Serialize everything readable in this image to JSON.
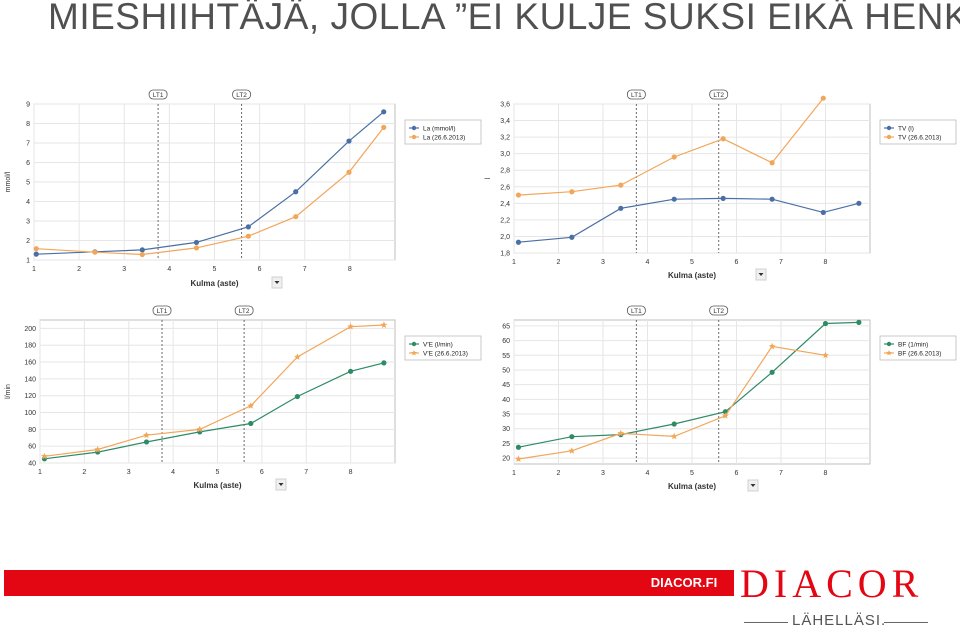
{
  "slide": {
    "title": "MIESHIIHTÄJÄ, JOLLA ”EI KULJE SUKSI EIKÄ HENKI”"
  },
  "footer": {
    "url": "DIACOR.FI",
    "logo": "DIACOR",
    "tagline": "LÄHELLÄSI.",
    "brand_color": "#e30613"
  },
  "colors": {
    "series_a_blue": "#4a6fa5",
    "series_a_green": "#2e8b66",
    "series_b_orange": "#f2a65a",
    "threshold_line": "#6b6b6b",
    "grid": "#e6e6e6"
  },
  "chart_data": [
    {
      "type": "line",
      "ylabel": "mmol/l",
      "xlabel": "Kulma (aste)",
      "xlim": [
        1,
        9
      ],
      "ylim": [
        1,
        9
      ],
      "x_ticks": [
        1,
        2,
        3,
        4,
        5,
        6,
        7,
        8
      ],
      "y_ticks": [
        1,
        2,
        3,
        4,
        5,
        6,
        7,
        8,
        9
      ],
      "y_decimals": 0,
      "thresholds": [
        {
          "label": "LT1",
          "x": 3.75
        },
        {
          "label": "LT2",
          "x": 5.6
        }
      ],
      "grid": true,
      "legend_position": "top-right",
      "series": [
        {
          "name": "La (mmol/l)",
          "color": "#4a6fa5",
          "marker": "dot",
          "x": [
            1.05,
            2.35,
            3.4,
            4.6,
            5.75,
            6.8,
            7.98,
            8.75
          ],
          "y": [
            1.3,
            1.42,
            1.52,
            1.9,
            2.7,
            4.5,
            7.1,
            8.6
          ]
        },
        {
          "name": "La (26.6.2013)",
          "color": "#f2a65a",
          "marker": "dot",
          "x": [
            1.05,
            2.35,
            3.4,
            4.6,
            5.75,
            6.8,
            7.98,
            8.75
          ],
          "y": [
            1.58,
            1.4,
            1.28,
            1.62,
            2.22,
            3.22,
            5.5,
            7.8
          ]
        }
      ]
    },
    {
      "type": "line",
      "ylabel": "l",
      "xlabel": "Kulma (aste)",
      "xlim": [
        1,
        9
      ],
      "ylim": [
        1.8,
        3.6
      ],
      "x_ticks": [
        1,
        2,
        3,
        4,
        5,
        6,
        7,
        8
      ],
      "y_ticks": [
        1.8,
        2,
        2.2,
        2.4,
        2.6,
        2.8,
        3,
        3.2,
        3.4,
        3.6
      ],
      "y_decimals": 1,
      "thresholds": [
        {
          "label": "LT1",
          "x": 3.75
        },
        {
          "label": "LT2",
          "x": 5.6
        }
      ],
      "grid": true,
      "legend_position": "top-right",
      "series": [
        {
          "name": "TV (l)",
          "color": "#4a6fa5",
          "marker": "dot",
          "x": [
            1.1,
            2.3,
            3.4,
            4.6,
            5.7,
            6.8,
            7.95,
            8.75
          ],
          "y": [
            1.93,
            1.99,
            2.34,
            2.45,
            2.46,
            2.45,
            2.29,
            2.4
          ]
        },
        {
          "name": "TV (26.6.2013)",
          "color": "#f2a65a",
          "marker": "dot",
          "x": [
            1.1,
            2.3,
            3.4,
            4.6,
            5.7,
            6.8,
            7.95
          ],
          "y": [
            2.5,
            2.54,
            2.62,
            2.96,
            3.18,
            2.89,
            3.67
          ]
        }
      ]
    },
    {
      "type": "line",
      "ylabel": "l/min",
      "xlabel": "Kulma (aste)",
      "xlim": [
        1,
        9
      ],
      "ylim": [
        40,
        210
      ],
      "x_ticks": [
        1,
        2,
        3,
        4,
        5,
        6,
        7,
        8
      ],
      "y_ticks": [
        40,
        60,
        80,
        100,
        120,
        140,
        160,
        180,
        200
      ],
      "y_decimals": 0,
      "thresholds": [
        {
          "label": "LT1",
          "x": 3.75
        },
        {
          "label": "LT2",
          "x": 5.6
        }
      ],
      "grid": true,
      "legend_position": "top-right",
      "series": [
        {
          "name": "V'E (l/min)",
          "color": "#2e8b66",
          "marker": "dot",
          "x": [
            1.1,
            2.3,
            3.4,
            4.6,
            5.75,
            6.8,
            8.0,
            8.75
          ],
          "y": [
            45,
            53,
            65,
            77,
            87,
            119,
            149,
            159
          ]
        },
        {
          "name": "V'E (26.6.2013)",
          "color": "#f2a65a",
          "marker": "star",
          "x": [
            1.1,
            2.3,
            3.4,
            4.6,
            5.75,
            6.8,
            8.0,
            8.75
          ],
          "y": [
            48,
            56,
            73,
            80,
            108,
            166,
            202,
            204
          ]
        }
      ]
    },
    {
      "type": "line",
      "ylabel": "",
      "xlabel": "Kulma (aste)",
      "xlim": [
        1,
        9
      ],
      "ylim": [
        18,
        67
      ],
      "x_ticks": [
        1,
        2,
        3,
        4,
        5,
        6,
        7,
        8
      ],
      "y_ticks": [
        20,
        25,
        30,
        35,
        40,
        45,
        50,
        55,
        60,
        65
      ],
      "y_decimals": 0,
      "thresholds": [
        {
          "label": "LT1",
          "x": 3.75
        },
        {
          "label": "LT2",
          "x": 5.6
        }
      ],
      "grid": true,
      "legend_position": "top-right",
      "series": [
        {
          "name": "BF (1/min)",
          "color": "#2e8b66",
          "marker": "dot",
          "x": [
            1.1,
            2.3,
            3.4,
            4.6,
            5.75,
            6.8,
            8.0,
            8.75
          ],
          "y": [
            23.7,
            27.3,
            28.0,
            31.6,
            35.8,
            49.2,
            65.8,
            66.2
          ]
        },
        {
          "name": "BF (26.6.2013)",
          "color": "#f2a65a",
          "marker": "star",
          "x": [
            1.1,
            2.3,
            3.4,
            4.6,
            5.75,
            6.8,
            8.0
          ],
          "y": [
            19.7,
            22.5,
            28.4,
            27.4,
            34.4,
            58.0,
            55.0
          ]
        }
      ]
    }
  ]
}
